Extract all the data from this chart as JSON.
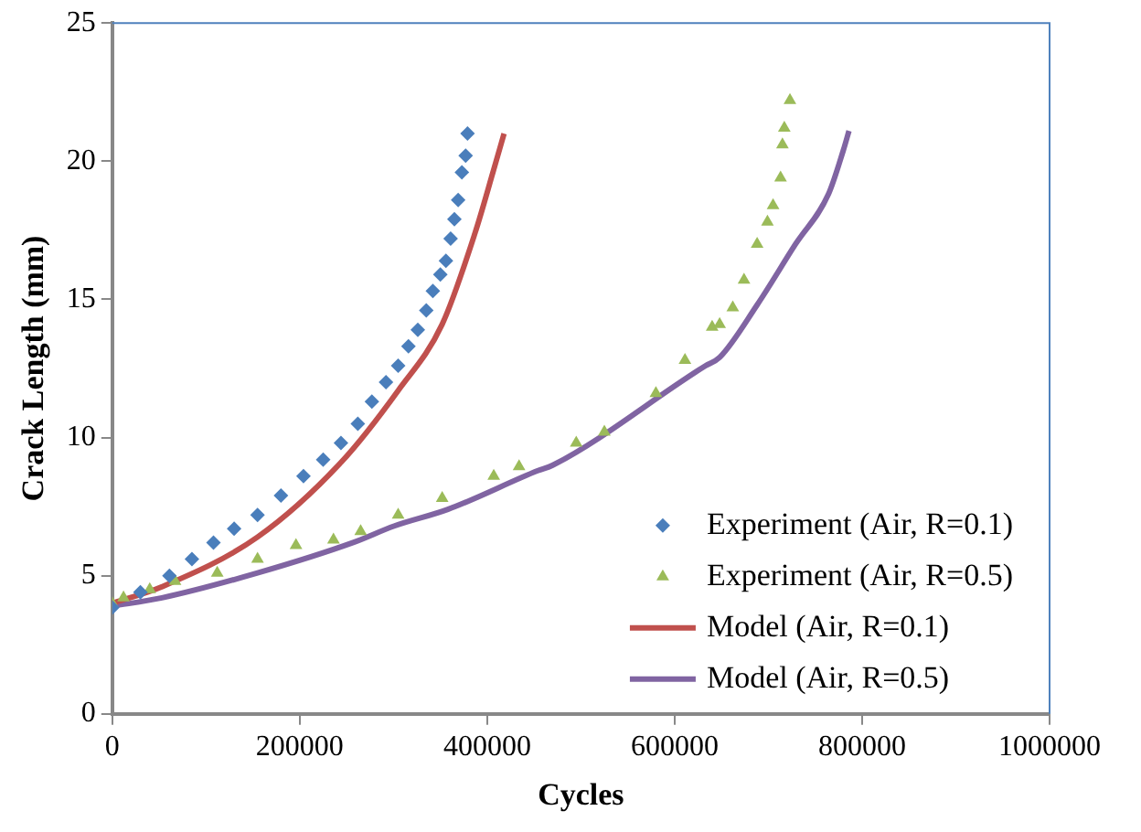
{
  "chart_data": {
    "type": "scatter",
    "xlabel": "Cycles",
    "ylabel": "Crack Length (mm)",
    "xlim": [
      0,
      1000000
    ],
    "ylim": [
      0,
      25
    ],
    "xticks": [
      0,
      200000,
      400000,
      600000,
      800000,
      1000000
    ],
    "yticks": [
      0,
      5,
      10,
      15,
      20,
      25
    ],
    "grid": false,
    "legend": "bottom right",
    "series": [
      {
        "name": "Experiment (Air, R=0.1)",
        "color": "#4a7ebb",
        "marker": "diamond",
        "x": [
          0,
          30000,
          61000,
          85000,
          108000,
          130000,
          155000,
          180000,
          204000,
          225000,
          244000,
          262000,
          277000,
          292000,
          305000,
          316000,
          326000,
          335000,
          342000,
          350000,
          356000,
          361000,
          365000,
          369000,
          373000,
          377000,
          379000
        ],
        "values": [
          3.85,
          4.4,
          5.0,
          5.6,
          6.2,
          6.7,
          7.2,
          7.9,
          8.6,
          9.2,
          9.8,
          10.5,
          11.3,
          12.0,
          12.6,
          13.3,
          13.9,
          14.6,
          15.3,
          15.9,
          16.4,
          17.2,
          17.9,
          18.6,
          19.6,
          20.2,
          21.0
        ]
      },
      {
        "name": "Experiment (Air, R=0.5)",
        "color": "#9bbb59",
        "marker": "triangle",
        "x": [
          0,
          12000,
          40000,
          67000,
          112000,
          155000,
          196000,
          236000,
          265000,
          305000,
          352000,
          407000,
          434000,
          495000,
          525000,
          580000,
          611000,
          640000,
          648000,
          662000,
          674000,
          688000,
          699000,
          705000,
          713000,
          715000,
          717000,
          723000
        ],
        "values": [
          4.0,
          4.2,
          4.5,
          4.8,
          5.1,
          5.6,
          6.1,
          6.3,
          6.6,
          7.2,
          7.8,
          8.6,
          8.95,
          9.8,
          10.2,
          11.6,
          12.8,
          14.0,
          14.1,
          14.7,
          15.7,
          17.0,
          17.8,
          18.4,
          19.4,
          20.6,
          21.2,
          22.2
        ]
      },
      {
        "name": "Model (Air, R=0.1)",
        "type": "line",
        "color": "#c0504d",
        "marker": "none",
        "x": [
          0,
          53000,
          155000,
          244000,
          305000,
          352000,
          387000,
          407000,
          418000
        ],
        "values": [
          4.0,
          4.6,
          6.4,
          9.1,
          11.7,
          14.1,
          17.4,
          19.7,
          21.0
        ]
      },
      {
        "name": "Model (Air, R=0.5)",
        "type": "line",
        "color": "#8064a2",
        "marker": "none",
        "x": [
          0,
          53000,
          155000,
          257000,
          301000,
          358000,
          454000,
          470000,
          633000,
          648000,
          688000,
          729000,
          764000,
          780000,
          786000
        ],
        "values": [
          3.9,
          4.2,
          5.1,
          6.2,
          6.8,
          7.4,
          8.8,
          9.0,
          12.6,
          12.9,
          14.8,
          17.0,
          18.8,
          20.4,
          21.1
        ]
      }
    ]
  }
}
